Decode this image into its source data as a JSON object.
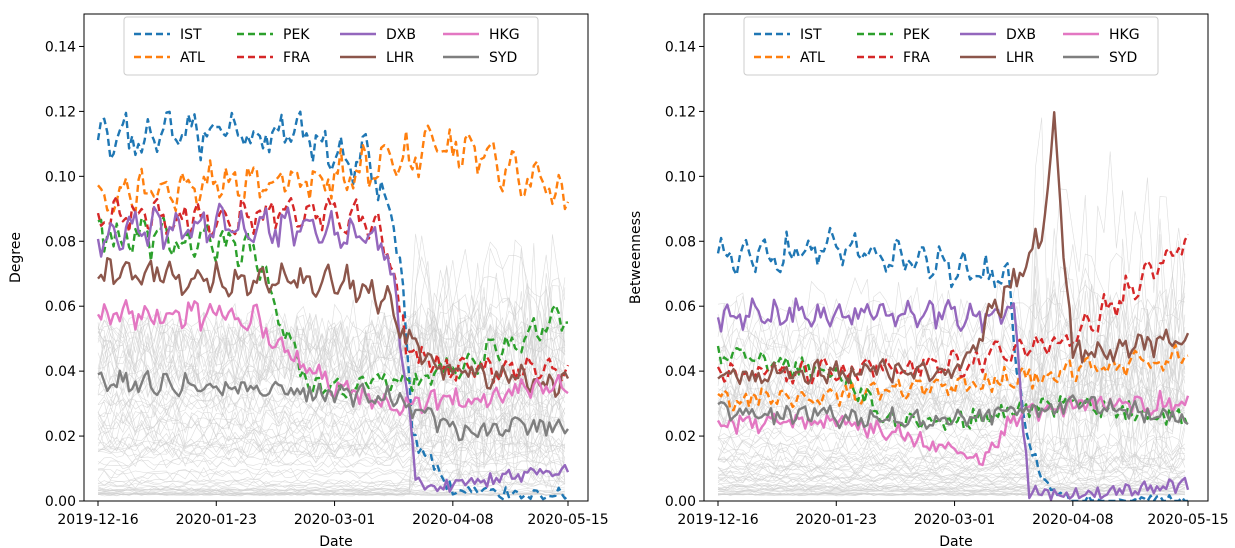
{
  "chart_data": [
    {
      "type": "line",
      "xlabel": "Date",
      "ylabel": "Degree",
      "x_range": [
        "2019-12-16",
        "2020-05-15"
      ],
      "ylim": [
        0,
        0.15
      ],
      "xticks": [
        "2019-12-16",
        "2020-01-23",
        "2020-03-01",
        "2020-04-08",
        "2020-05-15"
      ],
      "yticks": [
        "0.00",
        "0.02",
        "0.04",
        "0.06",
        "0.08",
        "0.10",
        "0.12",
        "0.14"
      ],
      "background_series": "many thin light-gray lines (other airports)",
      "legend": {
        "placement": "top-center",
        "ncol": 4
      },
      "series": [
        {
          "name": "IST",
          "color": "#1f77b4",
          "style": "dashed",
          "points": [
            [
              "2019-12-16",
              0.11
            ],
            [
              "2020-01-23",
              0.113
            ],
            [
              "2020-02-20",
              0.112
            ],
            [
              "2020-03-01",
              0.106
            ],
            [
              "2020-03-12",
              0.105
            ],
            [
              "2020-03-22",
              0.08
            ],
            [
              "2020-03-26",
              0.02
            ],
            [
              "2020-04-08",
              0.003
            ],
            [
              "2020-05-15",
              0.002
            ]
          ]
        },
        {
          "name": "ATL",
          "color": "#ff7f0e",
          "style": "dashed",
          "points": [
            [
              "2019-12-16",
              0.093
            ],
            [
              "2020-01-23",
              0.098
            ],
            [
              "2020-03-01",
              0.1
            ],
            [
              "2020-03-20",
              0.105
            ],
            [
              "2020-04-08",
              0.109
            ],
            [
              "2020-05-15",
              0.093
            ]
          ]
        },
        {
          "name": "PEK",
          "color": "#2ca02c",
          "style": "dashed",
          "points": [
            [
              "2019-12-16",
              0.082
            ],
            [
              "2020-01-23",
              0.08
            ],
            [
              "2020-02-06",
              0.075
            ],
            [
              "2020-02-12",
              0.055
            ],
            [
              "2020-02-22",
              0.035
            ],
            [
              "2020-03-01",
              0.035
            ],
            [
              "2020-03-15",
              0.036
            ],
            [
              "2020-04-08",
              0.04
            ],
            [
              "2020-05-15",
              0.058
            ]
          ]
        },
        {
          "name": "FRA",
          "color": "#d62728",
          "style": "dashed",
          "points": [
            [
              "2019-12-16",
              0.087
            ],
            [
              "2020-01-23",
              0.088
            ],
            [
              "2020-03-01",
              0.089
            ],
            [
              "2020-03-16",
              0.085
            ],
            [
              "2020-03-25",
              0.045
            ],
            [
              "2020-04-08",
              0.04
            ],
            [
              "2020-05-15",
              0.04
            ]
          ]
        },
        {
          "name": "DXB",
          "color": "#9467bd",
          "style": "solid",
          "points": [
            [
              "2019-12-16",
              0.082
            ],
            [
              "2020-01-23",
              0.085
            ],
            [
              "2020-03-01",
              0.083
            ],
            [
              "2020-03-18",
              0.078
            ],
            [
              "2020-03-25",
              0.03
            ],
            [
              "2020-03-27",
              0.005
            ],
            [
              "2020-04-08",
              0.005
            ],
            [
              "2020-05-15",
              0.01
            ]
          ]
        },
        {
          "name": "LHR",
          "color": "#8c564b",
          "style": "solid",
          "points": [
            [
              "2019-12-16",
              0.07
            ],
            [
              "2020-01-23",
              0.068
            ],
            [
              "2020-03-01",
              0.068
            ],
            [
              "2020-03-18",
              0.062
            ],
            [
              "2020-03-28",
              0.045
            ],
            [
              "2020-04-08",
              0.04
            ],
            [
              "2020-05-15",
              0.036
            ]
          ]
        },
        {
          "name": "HKG",
          "color": "#e377c2",
          "style": "solid",
          "points": [
            [
              "2019-12-16",
              0.057
            ],
            [
              "2020-01-23",
              0.058
            ],
            [
              "2020-02-05",
              0.056
            ],
            [
              "2020-02-15",
              0.045
            ],
            [
              "2020-03-01",
              0.035
            ],
            [
              "2020-03-15",
              0.03
            ],
            [
              "2020-04-08",
              0.031
            ],
            [
              "2020-05-15",
              0.036
            ]
          ]
        },
        {
          "name": "SYD",
          "color": "#7f7f7f",
          "style": "solid",
          "points": [
            [
              "2019-12-16",
              0.037
            ],
            [
              "2020-01-23",
              0.036
            ],
            [
              "2020-03-01",
              0.033
            ],
            [
              "2020-03-20",
              0.032
            ],
            [
              "2020-03-28",
              0.027
            ],
            [
              "2020-04-08",
              0.022
            ],
            [
              "2020-05-15",
              0.023
            ]
          ]
        }
      ]
    },
    {
      "type": "line",
      "xlabel": "Date",
      "ylabel": "Betweenness",
      "x_range": [
        "2019-12-16",
        "2020-05-15"
      ],
      "ylim": [
        0,
        0.15
      ],
      "xticks": [
        "2019-12-16",
        "2020-01-23",
        "2020-03-01",
        "2020-04-08",
        "2020-05-15"
      ],
      "yticks": [
        "0.00",
        "0.02",
        "0.04",
        "0.06",
        "0.08",
        "0.10",
        "0.12",
        "0.14"
      ],
      "background_series": "many thin light-gray lines (other airports)",
      "legend": {
        "placement": "top-center",
        "ncol": 4
      },
      "series": [
        {
          "name": "IST",
          "color": "#1f77b4",
          "style": "dashed",
          "points": [
            [
              "2019-12-16",
              0.075
            ],
            [
              "2020-01-23",
              0.078
            ],
            [
              "2020-03-01",
              0.072
            ],
            [
              "2020-03-18",
              0.068
            ],
            [
              "2020-03-24",
              0.02
            ],
            [
              "2020-03-30",
              0.005
            ],
            [
              "2020-04-08",
              0.0
            ],
            [
              "2020-05-15",
              0.0
            ]
          ]
        },
        {
          "name": "ATL",
          "color": "#ff7f0e",
          "style": "dashed",
          "points": [
            [
              "2019-12-16",
              0.031
            ],
            [
              "2020-01-23",
              0.033
            ],
            [
              "2020-03-01",
              0.035
            ],
            [
              "2020-04-08",
              0.04
            ],
            [
              "2020-05-15",
              0.045
            ]
          ]
        },
        {
          "name": "PEK",
          "color": "#2ca02c",
          "style": "dashed",
          "points": [
            [
              "2019-12-16",
              0.045
            ],
            [
              "2020-01-23",
              0.04
            ],
            [
              "2020-02-10",
              0.025
            ],
            [
              "2020-03-01",
              0.025
            ],
            [
              "2020-04-08",
              0.03
            ],
            [
              "2020-05-15",
              0.025
            ]
          ]
        },
        {
          "name": "FRA",
          "color": "#d62728",
          "style": "dashed",
          "points": [
            [
              "2019-12-16",
              0.04
            ],
            [
              "2020-01-23",
              0.04
            ],
            [
              "2020-03-01",
              0.042
            ],
            [
              "2020-04-08",
              0.05
            ],
            [
              "2020-05-15",
              0.08
            ]
          ]
        },
        {
          "name": "DXB",
          "color": "#9467bd",
          "style": "solid",
          "points": [
            [
              "2019-12-16",
              0.057
            ],
            [
              "2020-01-23",
              0.058
            ],
            [
              "2020-03-01",
              0.057
            ],
            [
              "2020-03-20",
              0.058
            ],
            [
              "2020-03-25",
              0.003
            ],
            [
              "2020-04-08",
              0.002
            ],
            [
              "2020-05-15",
              0.005
            ]
          ]
        },
        {
          "name": "LHR",
          "color": "#8c564b",
          "style": "solid",
          "points": [
            [
              "2019-12-16",
              0.038
            ],
            [
              "2020-01-23",
              0.04
            ],
            [
              "2020-03-01",
              0.04
            ],
            [
              "2020-03-28",
              0.08
            ],
            [
              "2020-04-02",
              0.115
            ],
            [
              "2020-04-08",
              0.045
            ],
            [
              "2020-05-15",
              0.05
            ]
          ]
        },
        {
          "name": "HKG",
          "color": "#e377c2",
          "style": "solid",
          "points": [
            [
              "2019-12-16",
              0.024
            ],
            [
              "2020-01-23",
              0.025
            ],
            [
              "2020-02-15",
              0.02
            ],
            [
              "2020-03-10",
              0.013
            ],
            [
              "2020-03-20",
              0.025
            ],
            [
              "2020-04-08",
              0.03
            ],
            [
              "2020-05-15",
              0.03
            ]
          ]
        },
        {
          "name": "SYD",
          "color": "#7f7f7f",
          "style": "solid",
          "points": [
            [
              "2019-12-16",
              0.028
            ],
            [
              "2020-01-23",
              0.026
            ],
            [
              "2020-03-01",
              0.025
            ],
            [
              "2020-04-08",
              0.03
            ],
            [
              "2020-05-15",
              0.025
            ]
          ]
        }
      ]
    }
  ]
}
